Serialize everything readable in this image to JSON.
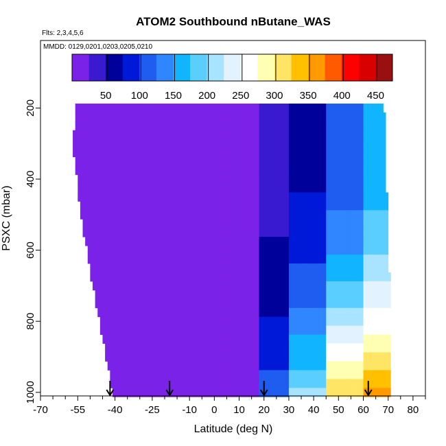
{
  "chart_data": {
    "type": "heatmap",
    "title": "ATOM2 Southbound nButane_WAS",
    "flights_note": "Flts: 2,3,4,5,6",
    "dates_note": "MMDD: 0129,0201,0203,0205,0210",
    "xlabel": "Latitude (deg N)",
    "ylabel": "PSXC (mbar)",
    "xlim": [
      -70,
      85
    ],
    "ylim": [
      1010,
      10
    ],
    "x_ticks": [
      -70,
      -55,
      -40,
      -25,
      -10,
      0,
      10,
      20,
      30,
      40,
      50,
      60,
      70,
      80
    ],
    "x_tick_labels": [
      "-70",
      "-55",
      "-40",
      "-25",
      "-10",
      "0",
      "10",
      "20",
      "30",
      "40",
      "50",
      "60",
      "70",
      "80"
    ],
    "x_minor_ticks": [
      -65,
      -60,
      -50,
      -45,
      -35,
      -30,
      -20,
      -15,
      -5,
      5,
      15,
      25,
      35,
      45,
      55,
      65,
      75,
      85
    ],
    "y_ticks": [
      200,
      400,
      600,
      800,
      1000
    ],
    "y_tick_labels": [
      "200",
      "400",
      "600",
      "800",
      "1000"
    ],
    "colorbar": {
      "ticks": [
        50,
        100,
        150,
        200,
        250,
        300,
        350,
        400,
        450
      ],
      "tick_labels": [
        "50",
        "100",
        "150",
        "200",
        "250",
        "300",
        "350",
        "400",
        "450"
      ],
      "range": [
        0,
        475
      ],
      "band_edges": [
        0,
        25,
        50,
        75,
        100,
        125,
        150,
        175,
        200,
        225,
        250,
        275,
        300,
        325,
        350,
        375,
        400,
        425,
        450,
        475
      ],
      "colors": [
        "#7b22e8",
        "#3a1ad0",
        "#00009a",
        "#0018d8",
        "#1f5cf0",
        "#2f86ff",
        "#10b4ff",
        "#5acfff",
        "#a8e4ff",
        "#e2f3ff",
        "#ffffff",
        "#ffffb4",
        "#ffe566",
        "#ffc000",
        "#ff9a00",
        "#ff5a00",
        "#ff0000",
        "#d80000",
        "#9a1010"
      ]
    },
    "pressure_levels": [
      200,
      225,
      250,
      275,
      300,
      325,
      350,
      375,
      400,
      425,
      450,
      475,
      500,
      525,
      550,
      575,
      600,
      625,
      650,
      675,
      700,
      725,
      750,
      775,
      800,
      825,
      850,
      875,
      900,
      925,
      950,
      975,
      1000
    ],
    "latitude_edge_south": [
      -56,
      -56,
      -56,
      -57,
      -57,
      -57,
      -56,
      -56,
      -55,
      -55,
      -55,
      -54,
      -54,
      -53,
      -53,
      -52,
      -51,
      -51,
      -50,
      -50,
      -49,
      -48,
      -48,
      -47,
      -46,
      -46,
      -45,
      -44,
      -44,
      -43,
      -42,
      -42,
      -41
    ],
    "latitude_edge_north": [
      68,
      69,
      69,
      69,
      69,
      69,
      69,
      69,
      69,
      69,
      70,
      70,
      70,
      70,
      70,
      70,
      70,
      70,
      70,
      71,
      71,
      71,
      71,
      71,
      71,
      71,
      71,
      71,
      71,
      71,
      71,
      71,
      71
    ],
    "regimes": [
      {
        "lat_from": -60,
        "lat_to": 18,
        "value_mid_trop": 15,
        "value_low_trop": 15
      },
      {
        "lat_from": 18,
        "lat_to": 30,
        "value_mid_trop": 40,
        "value_low_trop": 110
      },
      {
        "lat_from": 30,
        "lat_to": 45,
        "value_mid_trop": 70,
        "value_low_trop": 200
      },
      {
        "lat_from": 45,
        "lat_to": 60,
        "value_mid_trop": 110,
        "value_low_trop": 320
      },
      {
        "lat_from": 60,
        "lat_to": 72,
        "value_mid_trop": 160,
        "value_low_trop": 360
      }
    ],
    "profile_markers_lat": [
      -42,
      -18,
      20,
      62
    ],
    "profile_markers_note": "downward arrows at the surface mark vertical profiles"
  }
}
